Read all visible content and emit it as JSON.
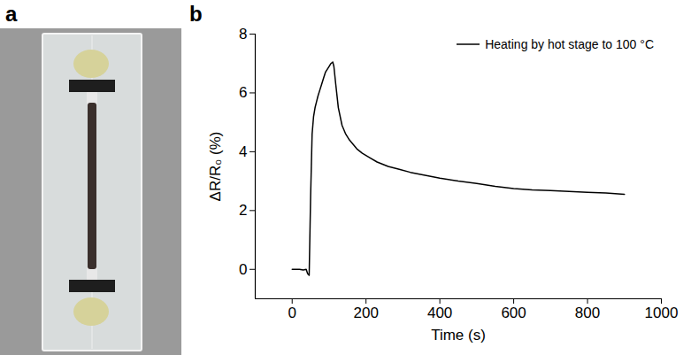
{
  "panel_letters": [
    "a",
    "b"
  ],
  "chart_data": {
    "type": "line",
    "xlabel": "Time (s)",
    "ylabel": "ΔR/R₀ (%)",
    "x": [
      0,
      10,
      20,
      30,
      38,
      42,
      46,
      50,
      54,
      58,
      62,
      66,
      70,
      75,
      80,
      85,
      90,
      95,
      100,
      105,
      110,
      113,
      118,
      125,
      135,
      145,
      155,
      165,
      175,
      190,
      210,
      230,
      260,
      290,
      320,
      360,
      400,
      450,
      500,
      550,
      600,
      650,
      700,
      750,
      800,
      850,
      900
    ],
    "series": [
      {
        "name": "Heating by hot stage to 100 °C",
        "color": "#000000",
        "values": [
          0,
          0,
          0,
          -0.02,
          0,
          -0.15,
          -0.2,
          2.5,
          4.6,
          5.2,
          5.5,
          5.7,
          5.9,
          6.1,
          6.3,
          6.5,
          6.7,
          6.8,
          6.9,
          7.0,
          7.05,
          6.9,
          6.3,
          5.5,
          4.9,
          4.6,
          4.4,
          4.25,
          4.1,
          3.95,
          3.8,
          3.65,
          3.5,
          3.4,
          3.3,
          3.2,
          3.1,
          3.0,
          2.92,
          2.82,
          2.75,
          2.7,
          2.68,
          2.65,
          2.62,
          2.6,
          2.55
        ]
      }
    ],
    "xlim": [
      -100,
      1000
    ],
    "xticks": [
      0,
      200,
      400,
      600,
      800,
      1000
    ],
    "ylim": [
      -1,
      8
    ],
    "yticks": [
      0,
      2,
      4,
      6,
      8
    ],
    "grid": false,
    "legend": "upper right"
  }
}
